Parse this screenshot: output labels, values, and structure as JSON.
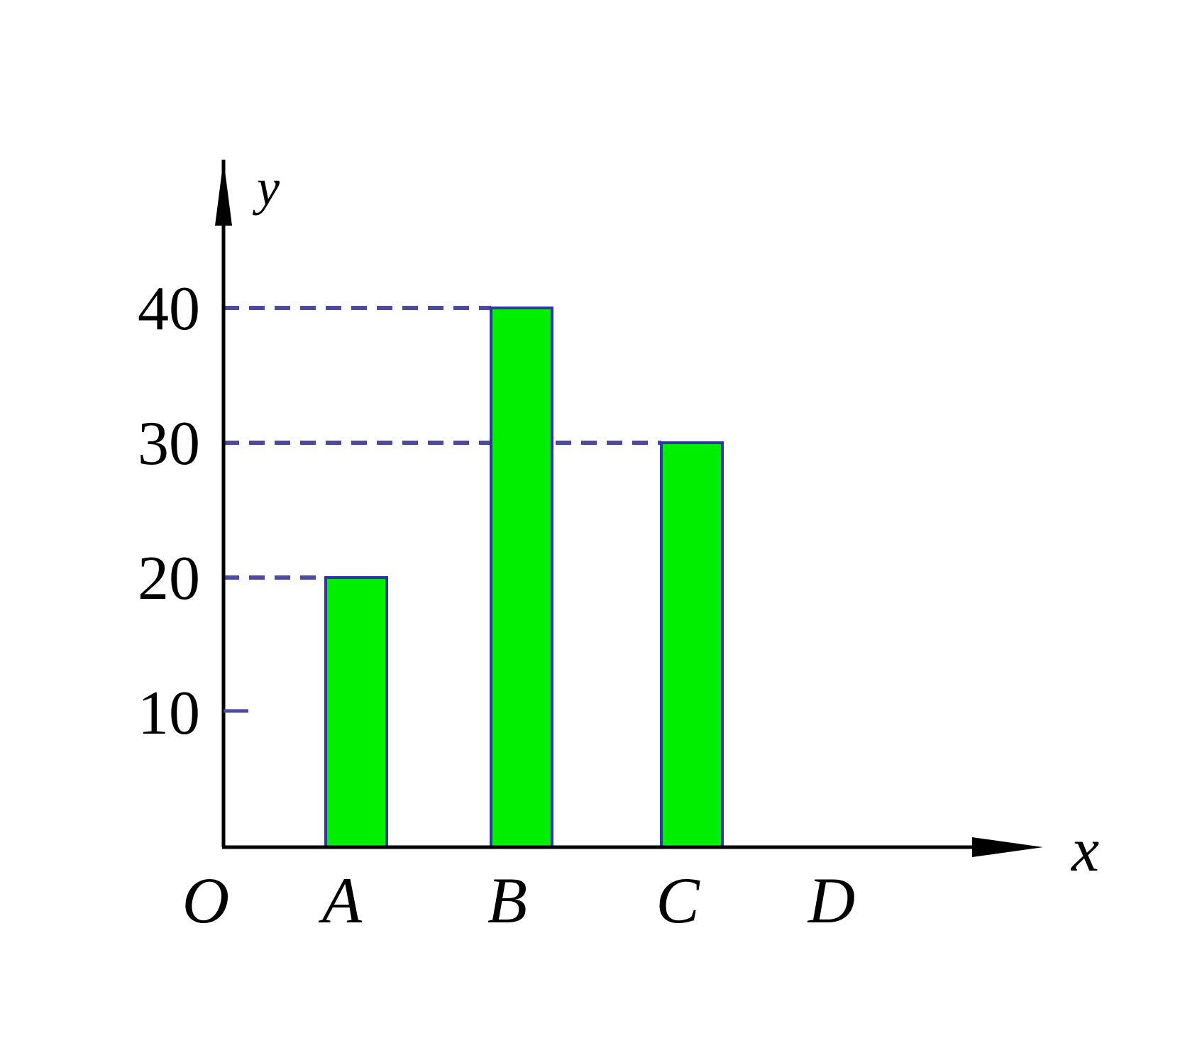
{
  "chart_data": {
    "type": "bar",
    "categories": [
      "A",
      "B",
      "C",
      "D"
    ],
    "values": [
      20,
      40,
      30,
      0
    ],
    "xlabel": "x",
    "ylabel": "y",
    "origin_label": "O",
    "yticks": [
      10,
      20,
      30,
      40
    ],
    "ylim": [
      0,
      40
    ],
    "reference_lines": [
      20,
      30,
      40
    ],
    "grid": false,
    "legend": "none",
    "colors": {
      "bar_fill": "#00ee00",
      "bar_stroke": "#3333aa",
      "dash": "#4a4aa0",
      "axis": "#000000"
    }
  }
}
